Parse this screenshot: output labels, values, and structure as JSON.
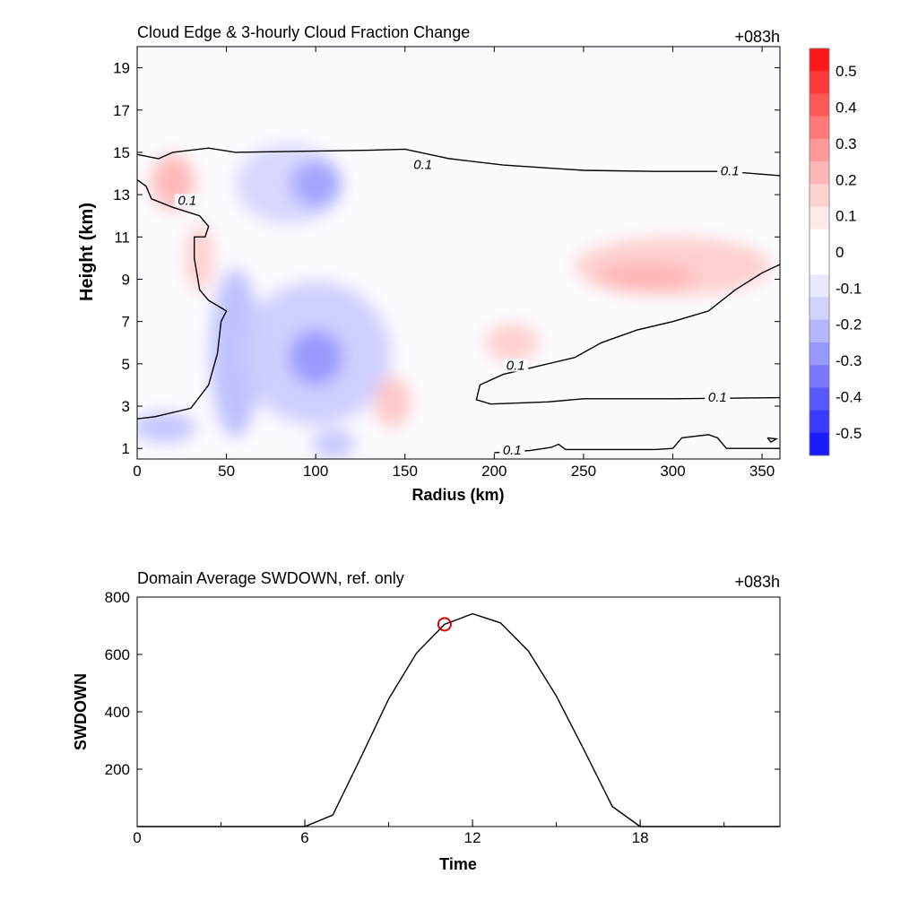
{
  "chart_data": [
    {
      "type": "contour",
      "title": "Cloud Edge & 3-hourly Cloud Fraction Change",
      "time_label": "+083h",
      "xlabel": "Radius (km)",
      "ylabel": "Height (km)",
      "xlim": [
        0,
        360
      ],
      "ylim": [
        0.5,
        20
      ],
      "x_ticks": [
        0,
        50,
        100,
        150,
        200,
        250,
        300,
        350
      ],
      "x_tick_labels": [
        "0",
        "50",
        "100",
        "150",
        "200",
        "250",
        "300",
        "350"
      ],
      "y_ticks": [
        1,
        3,
        5,
        7,
        9,
        11,
        13,
        15,
        17,
        19
      ],
      "y_tick_labels": [
        "1",
        "3",
        "5",
        "7",
        "9",
        "11",
        "13",
        "15",
        "17",
        "19"
      ],
      "contour_line_level": 0.1,
      "contour_labels": [
        {
          "text": "0.1",
          "r": 160,
          "z": 14.3
        },
        {
          "text": "0.1",
          "r": 332,
          "z": 14.0
        },
        {
          "text": "0.1",
          "r": 28,
          "z": 12.6
        },
        {
          "text": "0.1",
          "r": 212,
          "z": 4.8
        },
        {
          "text": "0.1",
          "r": 325,
          "z": 3.3
        },
        {
          "text": "0.1",
          "r": 210,
          "z": 0.8
        }
      ],
      "cloud_edge_curves": [
        [
          [
            0,
            14.9
          ],
          [
            12,
            14.7
          ],
          [
            20,
            15.0
          ],
          [
            40,
            15.2
          ],
          [
            55,
            15.0
          ],
          [
            90,
            15.05
          ],
          [
            130,
            15.1
          ],
          [
            150,
            15.15
          ],
          [
            175,
            14.7
          ],
          [
            205,
            14.4
          ],
          [
            250,
            14.15
          ],
          [
            290,
            14.1
          ],
          [
            330,
            14.1
          ],
          [
            360,
            13.9
          ]
        ],
        [
          [
            0,
            13.7
          ],
          [
            5,
            13.4
          ],
          [
            8,
            12.8
          ],
          [
            20,
            12.4
          ],
          [
            35,
            12.0
          ],
          [
            40,
            11.5
          ],
          [
            38,
            11.0
          ],
          [
            32,
            11.0
          ],
          [
            32,
            10.0
          ],
          [
            35,
            8.5
          ],
          [
            40,
            8.0
          ],
          [
            50,
            7.5
          ],
          [
            47,
            7.0
          ],
          [
            45,
            5.5
          ],
          [
            40,
            4.0
          ],
          [
            30,
            2.9
          ],
          [
            10,
            2.5
          ],
          [
            0,
            2.4
          ]
        ],
        [
          [
            360,
            9.7
          ],
          [
            350,
            9.3
          ],
          [
            335,
            8.5
          ],
          [
            320,
            7.5
          ],
          [
            300,
            7.0
          ],
          [
            280,
            6.6
          ],
          [
            260,
            6.0
          ],
          [
            245,
            5.3
          ],
          [
            235,
            5.1
          ],
          [
            220,
            4.8
          ],
          [
            205,
            4.5
          ],
          [
            192,
            4.0
          ],
          [
            190,
            3.3
          ],
          [
            198,
            3.1
          ],
          [
            230,
            3.2
          ],
          [
            250,
            3.35
          ],
          [
            300,
            3.35
          ],
          [
            360,
            3.4
          ]
        ],
        [
          [
            200,
            0.8
          ],
          [
            220,
            0.9
          ],
          [
            232,
            1.05
          ],
          [
            236,
            1.2
          ],
          [
            240,
            0.95
          ],
          [
            260,
            0.95
          ],
          [
            290,
            0.95
          ],
          [
            300,
            1.0
          ],
          [
            305,
            1.5
          ],
          [
            320,
            1.65
          ],
          [
            325,
            1.5
          ],
          [
            330,
            1.0
          ],
          [
            360,
            1.0
          ]
        ],
        [
          [
            353,
            1.5
          ],
          [
            358,
            1.45
          ],
          [
            355,
            1.3
          ],
          [
            353,
            1.5
          ]
        ]
      ],
      "colorbar": {
        "levels": [
          "0.5",
          "0.4",
          "0.3",
          "0.2",
          "0.1",
          "0",
          "-0.1",
          "-0.2",
          "-0.3",
          "-0.4",
          "-0.5"
        ],
        "colors_top_to_bottom": [
          "#ff1a1a",
          "#ff3939",
          "#ff5858",
          "#ff7979",
          "#ff9898",
          "#ffb6b6",
          "#ffd2d2",
          "#ffe8e8",
          "#ffffff",
          "#ffffff",
          "#e8e8ff",
          "#d2d2ff",
          "#b6b6ff",
          "#9898ff",
          "#7979ff",
          "#5858ff",
          "#3939ff",
          "#1a1aff"
        ]
      },
      "fill_blobs": [
        {
          "r": 20,
          "z": 13.6,
          "rx": 12,
          "rz": 1.3,
          "value": 0.18
        },
        {
          "r": 35,
          "z": 10.0,
          "rx": 8,
          "rz": 1.6,
          "value": 0.12
        },
        {
          "r": 85,
          "z": 13.5,
          "rx": 30,
          "rz": 1.9,
          "value": -0.1
        },
        {
          "r": 100,
          "z": 13.5,
          "rx": 14,
          "rz": 1.1,
          "value": -0.22
        },
        {
          "r": 300,
          "z": 9.6,
          "rx": 55,
          "rz": 1.4,
          "value": 0.12
        },
        {
          "r": 285,
          "z": 9.1,
          "rx": 28,
          "rz": 0.6,
          "value": 0.18
        },
        {
          "r": 55,
          "z": 5.5,
          "rx": 14,
          "rz": 4.0,
          "value": -0.16
        },
        {
          "r": 100,
          "z": 5.5,
          "rx": 42,
          "rz": 3.4,
          "value": -0.12
        },
        {
          "r": 100,
          "z": 5.3,
          "rx": 15,
          "rz": 1.3,
          "value": -0.25
        },
        {
          "r": 143,
          "z": 3.2,
          "rx": 10,
          "rz": 1.2,
          "value": 0.14
        },
        {
          "r": 210,
          "z": 6.0,
          "rx": 15,
          "rz": 0.9,
          "value": 0.12
        },
        {
          "r": 15,
          "z": 2.0,
          "rx": 18,
          "rz": 0.7,
          "value": -0.15
        },
        {
          "r": 110,
          "z": 1.2,
          "rx": 12,
          "rz": 0.7,
          "value": -0.14
        }
      ]
    },
    {
      "type": "line",
      "title": "Domain Average SWDOWN, ref. only",
      "time_label": "+083h",
      "xlabel": "Time",
      "ylabel": "SWDOWN",
      "xlim": [
        0,
        23
      ],
      "ylim": [
        0,
        800
      ],
      "x_ticks": [
        0,
        6,
        12,
        18
      ],
      "x_tick_labels": [
        "0",
        "6",
        "12",
        "18"
      ],
      "y_ticks": [
        200,
        400,
        600,
        800
      ],
      "y_tick_labels": [
        "200",
        "400",
        "600",
        "800"
      ],
      "x": [
        0,
        1,
        2,
        3,
        4,
        5,
        6,
        7,
        8,
        9,
        10,
        11,
        12,
        13,
        14,
        15,
        16,
        17,
        18,
        19,
        20,
        21,
        22,
        23
      ],
      "values": [
        0,
        0,
        0,
        0,
        0,
        0,
        0,
        40,
        240,
        445,
        605,
        705,
        742,
        710,
        612,
        455,
        265,
        70,
        0,
        0,
        0,
        0,
        0,
        0
      ],
      "marker": {
        "x": 11,
        "y": 705,
        "color": "#dd0000"
      }
    }
  ]
}
